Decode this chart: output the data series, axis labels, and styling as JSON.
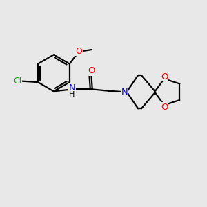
{
  "bg_color": "#e8e8e8",
  "bond_color": "#000000",
  "bond_width": 1.6,
  "atom_colors": {
    "C": "#000000",
    "N": "#0000cc",
    "O": "#ff0000",
    "Cl": "#00aa00",
    "H": "#000000"
  }
}
